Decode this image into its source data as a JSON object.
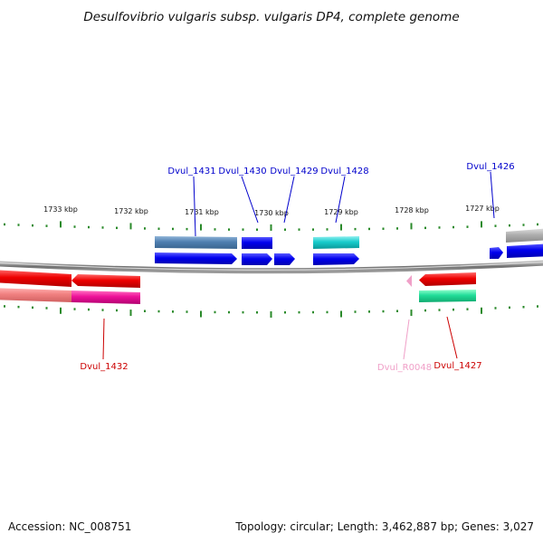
{
  "title": "Desulfovibrio vulgaris subsp. vulgaris DP4, complete genome",
  "scale_labels": [
    "1733 kbp",
    "1732 kbp",
    "1731 kbp",
    "1730 kbp",
    "1729 kbp",
    "1728 kbp",
    "1727 kbp"
  ],
  "gene_labels": [
    "Dvul_1431",
    "Dvul_1430",
    "Dvul_1429",
    "Dvul_1428",
    "Dvul_1426",
    "Dvul_1432",
    "Dvul_R0048",
    "Dvul_1427"
  ],
  "footer": {
    "accession": "Accession: NC_008751",
    "summary": "Topology: circular; Length: 3,462,887 bp; Genes: 3,027"
  },
  "colors": {
    "forward_cds": "#0a0aee",
    "reverse_cds": "#ee1111",
    "rna": "#f0a0c0",
    "tick": "#2a8a2a",
    "backbone": "#888888"
  }
}
